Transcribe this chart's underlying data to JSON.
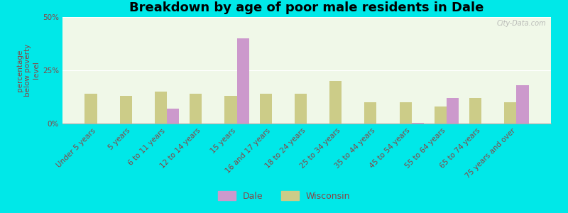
{
  "title": "Breakdown by age of poor male residents in Dale",
  "categories": [
    "Under 5 years",
    "5 years",
    "6 to 11 years",
    "12 to 14 years",
    "15 years",
    "16 and 17 years",
    "18 to 24 years",
    "25 to 34 years",
    "35 to 44 years",
    "45 to 54 years",
    "55 to 64 years",
    "65 to 74 years",
    "75 years and over"
  ],
  "dale_values": [
    null,
    null,
    7.0,
    null,
    40.0,
    null,
    null,
    null,
    null,
    0.5,
    12.0,
    null,
    18.0
  ],
  "wisconsin_values": [
    14.0,
    13.0,
    15.0,
    14.0,
    13.0,
    14.0,
    14.0,
    20.0,
    10.0,
    10.0,
    8.0,
    12.0,
    10.0
  ],
  "dale_color": "#cc99cc",
  "wisconsin_color": "#cccc88",
  "ylim": [
    0,
    50
  ],
  "yticks": [
    0,
    25,
    50
  ],
  "ytick_labels": [
    "0%",
    "25%",
    "50%"
  ],
  "bar_width": 0.35,
  "legend_labels": [
    "Dale",
    "Wisconsin"
  ],
  "figure_bg": "#00e8e8",
  "plot_bg": "#f0f8e8",
  "title_fontsize": 13,
  "label_color": "#884444",
  "tick_fontsize": 7.5,
  "ylabel_text": "percentage\nbelow poverty\nlevel"
}
